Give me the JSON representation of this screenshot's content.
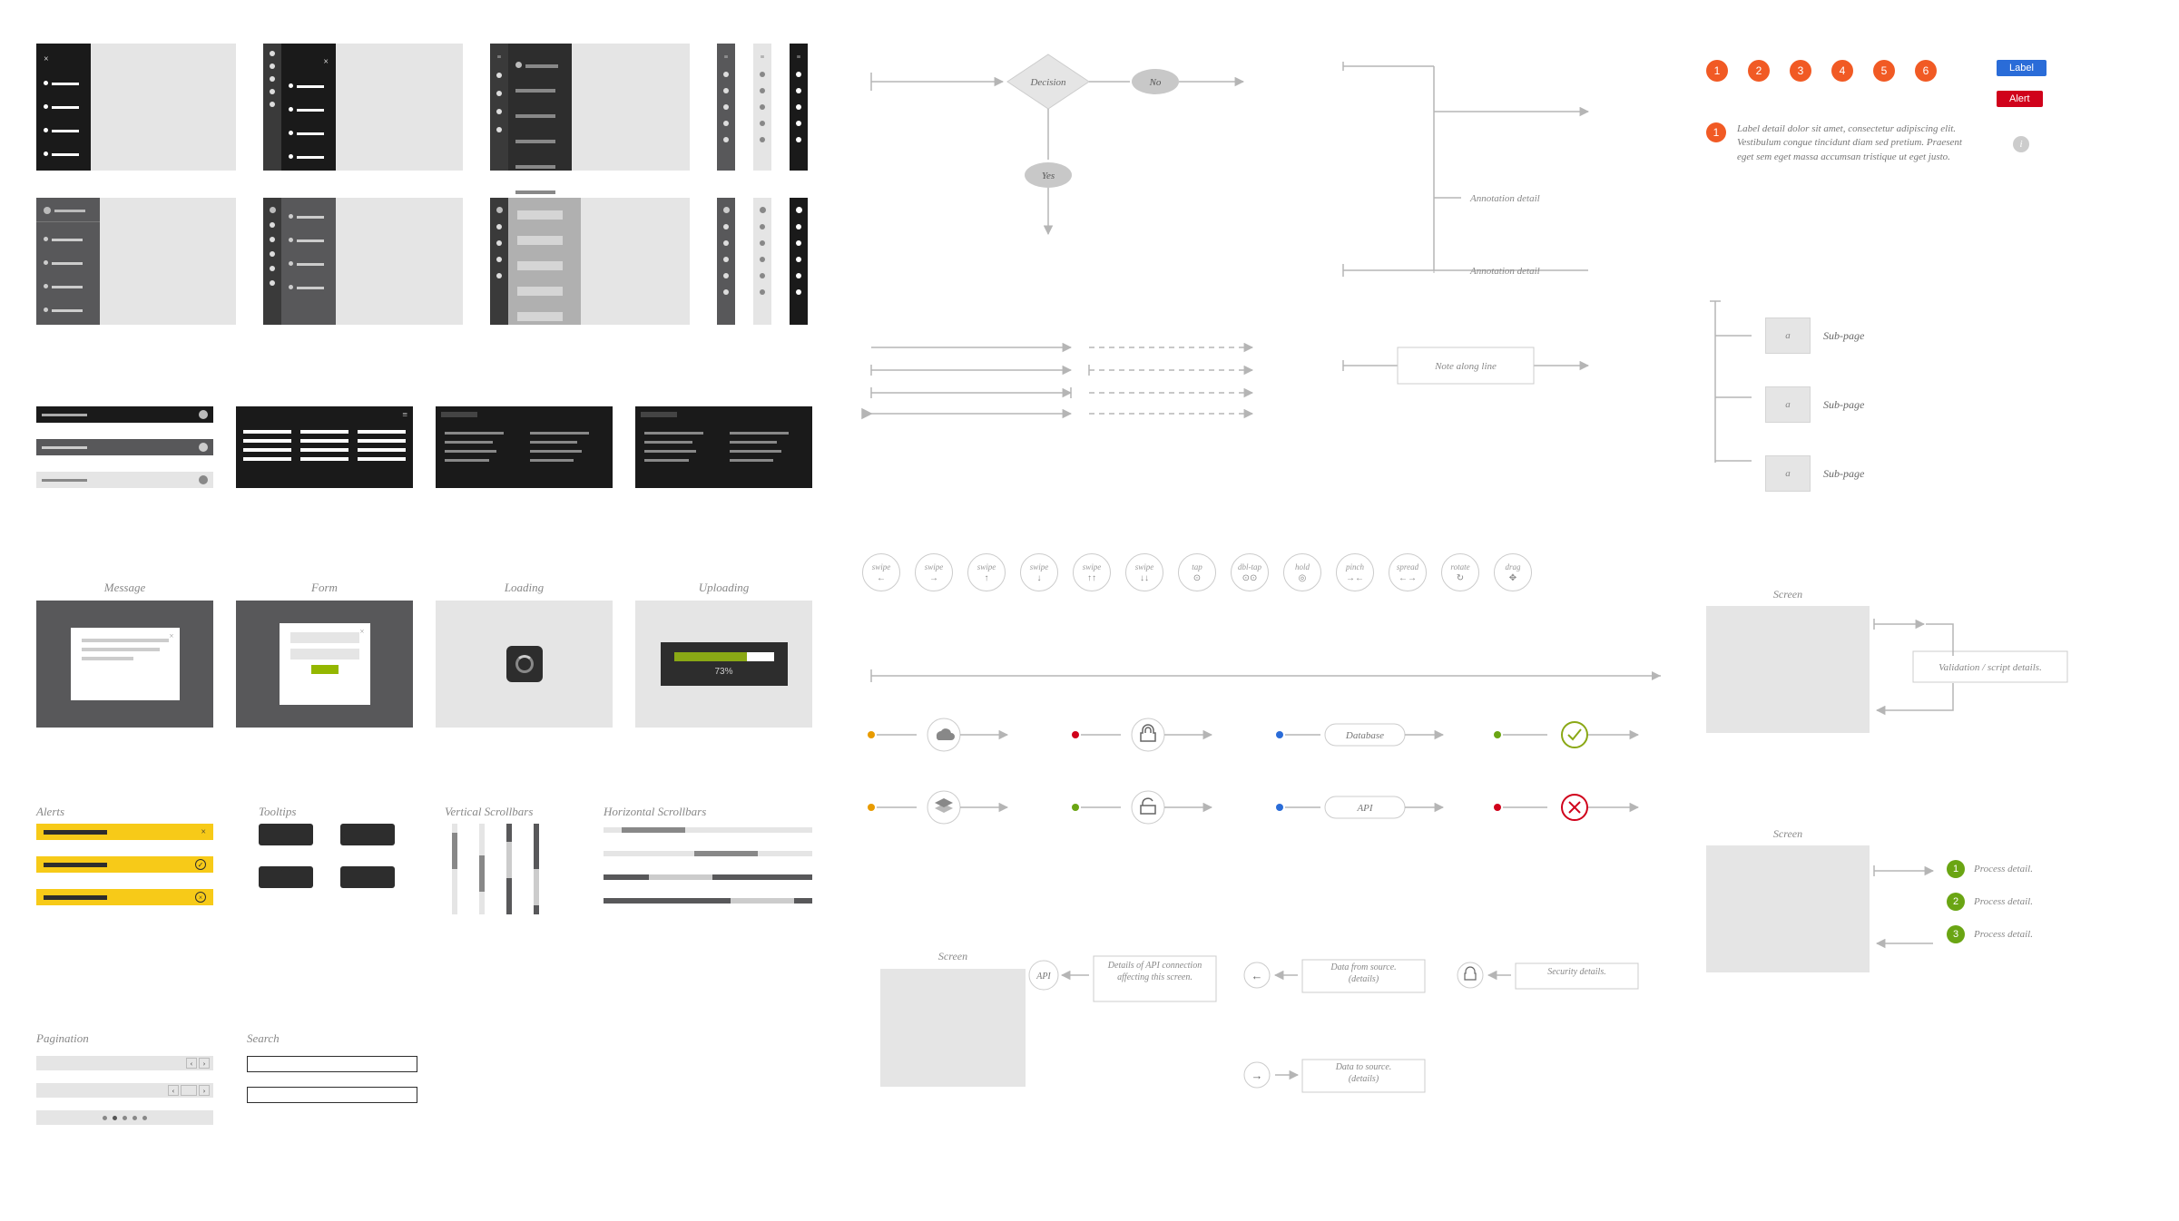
{
  "colors": {
    "bg": "#ffffff",
    "panel_light": "#e5e5e5",
    "panel_mid": "#cccccc",
    "panel_dark": "#58585a",
    "panel_darker": "#2d2d2d",
    "panel_black": "#1a1a1a",
    "text_gray": "#b5b5b5",
    "line_gray": "#b5b5b5",
    "yellow": "#f7ca18",
    "green_accent": "#94b700",
    "olive": "#8aa815",
    "orange": "#e89b00",
    "red": "#d0021b",
    "blue": "#2a6cd8",
    "green_ok": "#6aa513",
    "step_orange": "#f15a24",
    "step_green": "#6aa513",
    "white": "#ffffff"
  },
  "sidebar_variants": {
    "count": 12
  },
  "toolbars": {
    "rows": 2
  },
  "modals": {
    "message": {
      "title": "Message"
    },
    "form": {
      "title": "Form"
    },
    "loading": {
      "title": "Loading"
    },
    "uploading": {
      "title": "Uploading",
      "progress": "73%"
    }
  },
  "sections": {
    "alerts": "Alerts",
    "tooltips": "Tooltips",
    "vscroll": "Vertical Scrollbars",
    "hscroll": "Horizontal Scrollbars",
    "pagination": "Pagination",
    "search": "Search"
  },
  "flowchart": {
    "decision": "Decision",
    "no": "No",
    "yes": "Yes",
    "annotation1": "Annotation detail",
    "annotation2": "Annotation detail",
    "note": "Note along line"
  },
  "gestures": [
    {
      "label": "swipe",
      "glyph": "←"
    },
    {
      "label": "swipe",
      "glyph": "→"
    },
    {
      "label": "swipe",
      "glyph": "↑"
    },
    {
      "label": "swipe",
      "glyph": "↓"
    },
    {
      "label": "swipe",
      "glyph": "↑↑"
    },
    {
      "label": "swipe",
      "glyph": "↓↓"
    },
    {
      "label": "tap",
      "glyph": "⊙"
    },
    {
      "label": "dbl-tap",
      "glyph": "⊙⊙"
    },
    {
      "label": "hold",
      "glyph": "◎"
    },
    {
      "label": "pinch",
      "glyph": "→←"
    },
    {
      "label": "spread",
      "glyph": "←→"
    },
    {
      "label": "rotate",
      "glyph": "↻"
    },
    {
      "label": "drag",
      "glyph": "✥"
    }
  ],
  "flows": {
    "database": "Database",
    "api": "API"
  },
  "datascreen": {
    "screen": "Screen",
    "api_badge": "API",
    "api_detail": "Details of API connection affecting this screen.",
    "data_from": "Data from source.\n(details)",
    "security": "Security details.",
    "data_to": "Data to source.\n(details)"
  },
  "badges": {
    "numbers": [
      "1",
      "2",
      "3",
      "4",
      "5",
      "6"
    ],
    "label": "Label",
    "alert": "Alert",
    "detail_num": "1",
    "detail_text": "Label detail dolor sit amet, consectetur adipiscing elit. Vestibulum congue tincidunt diam sed pretium. Praesent eget sem eget massa accumsan tristique ut eget justo.",
    "info": "i"
  },
  "sitemap": {
    "a": "a",
    "subpage": "Sub-page"
  },
  "screenflow1": {
    "screen": "Screen",
    "validation": "Validation / script details."
  },
  "screenflow2": {
    "screen": "Screen",
    "p1": {
      "n": "1",
      "t": "Process detail."
    },
    "p2": {
      "n": "2",
      "t": "Process detail."
    },
    "p3": {
      "n": "3",
      "t": "Process detail."
    }
  }
}
